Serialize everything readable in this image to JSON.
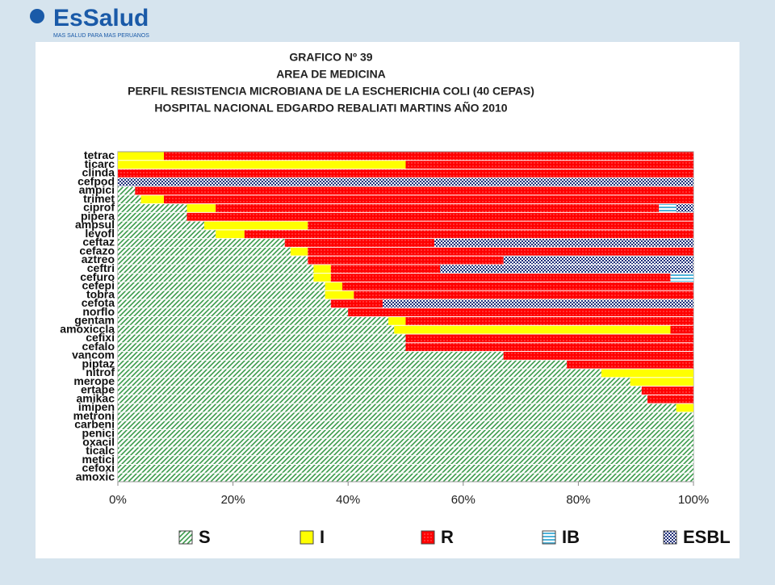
{
  "header": {
    "logo": "EsSalud",
    "tagline": "MAS SALUD PARA MAS PERUANOS"
  },
  "chart_data": {
    "type": "bar_stacked_horizontal",
    "title": [
      "GRAFICO Nº 39",
      "AREA DE MEDICINA",
      "PERFIL RESISTENCIA MICROBIANA DE LA ESCHERICHIA COLI (40 CEPAS)",
      "HOSPITAL NACIONAL EDGARDO REBALIATI MARTINS AÑO 2010"
    ],
    "categories": [
      "tetrac",
      "ticarc",
      "clinda",
      "cefpod",
      "ampici",
      "trimet",
      "ciprof",
      "pipera",
      "ampsul",
      "levofl",
      "ceftaz",
      "cefazo",
      "aztreo",
      "ceftri",
      "cefuro",
      "cefepi",
      "tobra",
      "cefota",
      "norflo",
      "gentam",
      "amoxiccla",
      "cefixi",
      "cefalo",
      "vancom",
      "piptaz",
      "nitrof",
      "merope",
      "ertape",
      "amikac",
      "imipen",
      "metroni",
      "carbeni",
      "penici",
      "oxacil",
      "ticalc",
      "metici",
      "cefoxi",
      "amoxic"
    ],
    "series": [
      {
        "name": "S",
        "color": "#3a9a4a",
        "values": [
          0,
          0,
          0,
          0,
          3,
          4,
          12,
          12,
          15,
          17,
          29,
          30,
          33,
          34,
          34,
          36,
          36,
          37,
          40,
          47,
          48,
          50,
          50,
          67,
          78,
          84,
          89,
          91,
          92,
          97,
          100,
          100,
          100,
          100,
          100,
          100,
          100,
          100
        ]
      },
      {
        "name": "I",
        "color": "#ffff00",
        "values": [
          8,
          50,
          0,
          0,
          0,
          4,
          5,
          0,
          18,
          5,
          0,
          3,
          0,
          3,
          3,
          3,
          5,
          0,
          0,
          3,
          48,
          0,
          0,
          0,
          0,
          16,
          11,
          0,
          0,
          3,
          0,
          0,
          0,
          0,
          0,
          0,
          0,
          0
        ]
      },
      {
        "name": "R",
        "color": "#ff0000",
        "values": [
          92,
          50,
          100,
          0,
          97,
          92,
          77,
          88,
          67,
          78,
          26,
          67,
          34,
          19,
          59,
          61,
          59,
          9,
          60,
          50,
          4,
          50,
          50,
          33,
          22,
          0,
          0,
          9,
          8,
          0,
          0,
          0,
          0,
          0,
          0,
          0,
          0,
          0
        ]
      },
      {
        "name": "IB",
        "color": "#4fb3d9",
        "values": [
          0,
          0,
          0,
          0,
          0,
          0,
          3,
          0,
          0,
          0,
          0,
          0,
          0,
          0,
          4,
          0,
          0,
          0,
          0,
          0,
          0,
          0,
          0,
          0,
          0,
          0,
          0,
          0,
          0,
          0,
          0,
          0,
          0,
          0,
          0,
          0,
          0,
          0
        ]
      },
      {
        "name": "ESBL",
        "color": "#1f2f7a",
        "values": [
          0,
          0,
          0,
          100,
          0,
          0,
          3,
          0,
          0,
          0,
          45,
          0,
          33,
          44,
          0,
          0,
          0,
          54,
          0,
          0,
          0,
          0,
          0,
          0,
          0,
          0,
          0,
          0,
          0,
          0,
          0,
          0,
          0,
          0,
          0,
          0,
          0,
          0
        ]
      }
    ],
    "xlim": [
      0,
      100
    ],
    "xticks": [
      {
        "value": 0,
        "label": "0%"
      },
      {
        "value": 20,
        "label": "20%"
      },
      {
        "value": 40,
        "label": "40%"
      },
      {
        "value": 60,
        "label": "60%"
      },
      {
        "value": 80,
        "label": "80%"
      },
      {
        "value": 100,
        "label": "100%"
      }
    ],
    "legend": "bottom"
  }
}
